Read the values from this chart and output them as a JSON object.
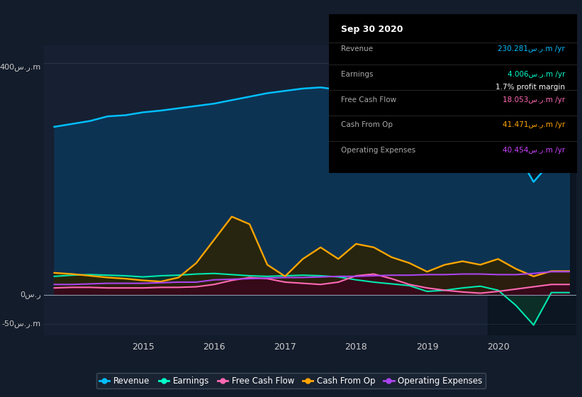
{
  "bg_color": "#131c2b",
  "plot_bg_color": "#162032",
  "axis_label_color": "#cccccc",
  "ylabel_400": "400س.ر.m",
  "ylabel_0": "0س.ر",
  "ylabel_neg50": "-50س.ر.m",
  "info_box": {
    "title": "Sep 30 2020",
    "revenue_label": "Revenue",
    "revenue_value": "230.281س.ر.m /yr",
    "revenue_color": "#00bfff",
    "earnings_label": "Earnings",
    "earnings_value": "4.006س.ر.m /yr",
    "earnings_color": "#00ffcc",
    "profit_margin": "1.7% profit margin",
    "profit_color": "#ffffff",
    "fcf_label": "Free Cash Flow",
    "fcf_value": "18.053س.ر.m /yr",
    "fcf_color": "#ff69b4",
    "cashop_label": "Cash From Op",
    "cashop_value": "41.471س.ر.m /yr",
    "cashop_color": "#ffa500",
    "opex_label": "Operating Expenses",
    "opex_value": "40.454س.ر.m /yr",
    "opex_color": "#cc44ff"
  },
  "legend": [
    {
      "label": "Revenue",
      "color": "#00bfff"
    },
    {
      "label": "Earnings",
      "color": "#00ffcc"
    },
    {
      "label": "Free Cash Flow",
      "color": "#ff69b4"
    },
    {
      "label": "Cash From Op",
      "color": "#ffa500"
    },
    {
      "label": "Operating Expenses",
      "color": "#aa44ee"
    }
  ],
  "xmin": 2013.6,
  "xmax": 2021.1,
  "ymin": -70,
  "ymax": 430,
  "shade_start_x": 2019.85,
  "revenue_x": [
    2013.75,
    2014.0,
    2014.25,
    2014.5,
    2014.75,
    2015.0,
    2015.25,
    2015.5,
    2015.75,
    2016.0,
    2016.25,
    2016.5,
    2016.75,
    2017.0,
    2017.25,
    2017.5,
    2017.75,
    2018.0,
    2018.25,
    2018.5,
    2018.75,
    2019.0,
    2019.25,
    2019.5,
    2019.75,
    2020.0,
    2020.25,
    2020.5,
    2020.75,
    2021.0
  ],
  "revenue_y": [
    290,
    295,
    300,
    308,
    310,
    315,
    318,
    322,
    326,
    330,
    336,
    342,
    348,
    352,
    356,
    358,
    354,
    320,
    270,
    260,
    265,
    275,
    305,
    328,
    342,
    328,
    248,
    195,
    230,
    230
  ],
  "earnings_x": [
    2013.75,
    2014.0,
    2014.25,
    2014.5,
    2014.75,
    2015.0,
    2015.25,
    2015.5,
    2015.75,
    2016.0,
    2016.25,
    2016.5,
    2016.75,
    2017.0,
    2017.25,
    2017.5,
    2017.75,
    2018.0,
    2018.25,
    2018.5,
    2018.75,
    2019.0,
    2019.25,
    2019.5,
    2019.75,
    2020.0,
    2020.25,
    2020.5,
    2020.75,
    2021.0
  ],
  "earnings_y": [
    32,
    34,
    35,
    34,
    33,
    31,
    33,
    34,
    36,
    37,
    35,
    33,
    32,
    33,
    34,
    33,
    31,
    26,
    22,
    19,
    16,
    6,
    8,
    12,
    15,
    8,
    -18,
    -52,
    4,
    4
  ],
  "fcf_x": [
    2013.75,
    2014.0,
    2014.25,
    2014.5,
    2014.75,
    2015.0,
    2015.25,
    2015.5,
    2015.75,
    2016.0,
    2016.25,
    2016.5,
    2016.75,
    2017.0,
    2017.25,
    2017.5,
    2017.75,
    2018.0,
    2018.25,
    2018.5,
    2018.75,
    2019.0,
    2019.25,
    2019.5,
    2019.75,
    2020.0,
    2020.25,
    2020.5,
    2020.75,
    2021.0
  ],
  "fcf_y": [
    12,
    13,
    13,
    12,
    12,
    12,
    13,
    13,
    14,
    18,
    25,
    30,
    28,
    22,
    20,
    18,
    22,
    33,
    36,
    28,
    18,
    12,
    8,
    5,
    3,
    6,
    10,
    14,
    18,
    18
  ],
  "cashop_x": [
    2013.75,
    2014.0,
    2014.25,
    2014.5,
    2014.75,
    2015.0,
    2015.25,
    2015.5,
    2015.75,
    2016.0,
    2016.25,
    2016.5,
    2016.75,
    2017.0,
    2017.25,
    2017.5,
    2017.75,
    2018.0,
    2018.25,
    2018.5,
    2018.75,
    2019.0,
    2019.25,
    2019.5,
    2019.75,
    2020.0,
    2020.25,
    2020.5,
    2020.75,
    2021.0
  ],
  "cashop_y": [
    38,
    36,
    33,
    30,
    28,
    25,
    23,
    30,
    55,
    95,
    135,
    122,
    52,
    32,
    62,
    82,
    62,
    88,
    82,
    65,
    55,
    40,
    52,
    58,
    52,
    62,
    45,
    32,
    41,
    41
  ],
  "opex_x": [
    2013.75,
    2014.0,
    2014.25,
    2014.5,
    2014.75,
    2015.0,
    2015.25,
    2015.5,
    2015.75,
    2016.0,
    2016.25,
    2016.5,
    2016.75,
    2017.0,
    2017.25,
    2017.5,
    2017.75,
    2018.0,
    2018.25,
    2018.5,
    2018.75,
    2019.0,
    2019.25,
    2019.5,
    2019.75,
    2020.0,
    2020.25,
    2020.5,
    2020.75,
    2021.0
  ],
  "opex_y": [
    18,
    18,
    19,
    20,
    20,
    20,
    21,
    22,
    22,
    26,
    27,
    28,
    29,
    30,
    30,
    31,
    32,
    32,
    33,
    34,
    34,
    35,
    35,
    36,
    36,
    35,
    35,
    37,
    40,
    40
  ]
}
